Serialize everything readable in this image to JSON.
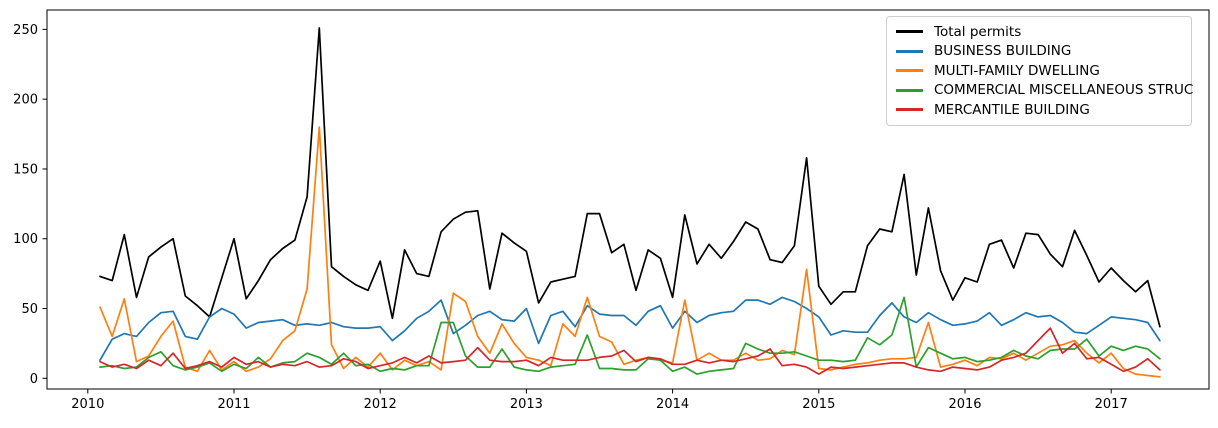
{
  "chart_data": {
    "type": "line",
    "title": "",
    "xlabel": "",
    "ylabel": "",
    "grid": false,
    "legend_position": "upper right",
    "x_tick_labels": [
      "2010",
      "2011",
      "2012",
      "2013",
      "2014",
      "2015",
      "2016",
      "2017"
    ],
    "y_ticks": [
      0,
      50,
      100,
      150,
      200,
      250
    ],
    "ylim": [
      -13,
      265
    ],
    "months": [
      "2010-02",
      "2010-03",
      "2010-04",
      "2010-05",
      "2010-06",
      "2010-07",
      "2010-08",
      "2010-09",
      "2010-10",
      "2010-11",
      "2010-12",
      "2011-01",
      "2011-02",
      "2011-03",
      "2011-04",
      "2011-05",
      "2011-06",
      "2011-07",
      "2011-08",
      "2011-09",
      "2011-10",
      "2011-11",
      "2011-12",
      "2012-01",
      "2012-02",
      "2012-03",
      "2012-04",
      "2012-05",
      "2012-06",
      "2012-07",
      "2012-08",
      "2012-09",
      "2012-10",
      "2012-11",
      "2012-12",
      "2013-01",
      "2013-02",
      "2013-03",
      "2013-04",
      "2013-05",
      "2013-06",
      "2013-07",
      "2013-08",
      "2013-09",
      "2013-10",
      "2013-11",
      "2013-12",
      "2014-01",
      "2014-02",
      "2014-03",
      "2014-04",
      "2014-05",
      "2014-06",
      "2014-07",
      "2014-08",
      "2014-09",
      "2014-10",
      "2014-11",
      "2014-12",
      "2015-01",
      "2015-02",
      "2015-03",
      "2015-04",
      "2015-05",
      "2015-06",
      "2015-07",
      "2015-08",
      "2015-09",
      "2015-10",
      "2015-11",
      "2015-12",
      "2016-01",
      "2016-02",
      "2016-03",
      "2016-04",
      "2016-05",
      "2016-06",
      "2016-07",
      "2016-08",
      "2016-09",
      "2016-10",
      "2016-11",
      "2016-12",
      "2017-01",
      "2017-02",
      "2017-03",
      "2017-04",
      "2017-05"
    ],
    "series": [
      {
        "name": "Total permits",
        "color": "#000000",
        "values": [
          73,
          70,
          103,
          58,
          87,
          94,
          100,
          59,
          52,
          44,
          72,
          100,
          57,
          70,
          85,
          93,
          99,
          130,
          251,
          80,
          73,
          67,
          63,
          84,
          43,
          92,
          75,
          73,
          105,
          114,
          119,
          120,
          64,
          104,
          97,
          91,
          54,
          69,
          71,
          73,
          118,
          118,
          90,
          96,
          63,
          92,
          86,
          58,
          117,
          82,
          96,
          86,
          98,
          112,
          107,
          85,
          83,
          95,
          158,
          66,
          53,
          62,
          62,
          95,
          107,
          105,
          146,
          74,
          122,
          77,
          56,
          72,
          69,
          96,
          99,
          79,
          104,
          103,
          89,
          80,
          106,
          88,
          69,
          79,
          70,
          62,
          70,
          37
        ]
      },
      {
        "name": "BUSINESS BUILDING",
        "color": "#1f77b4",
        "values": [
          13,
          28,
          32,
          30,
          40,
          47,
          48,
          30,
          28,
          44,
          50,
          46,
          36,
          40,
          41,
          42,
          38,
          39,
          38,
          40,
          37,
          36,
          36,
          37,
          27,
          34,
          43,
          48,
          56,
          32,
          38,
          45,
          48,
          42,
          41,
          50,
          25,
          45,
          48,
          37,
          52,
          46,
          45,
          45,
          38,
          48,
          52,
          36,
          48,
          40,
          45,
          47,
          48,
          56,
          56,
          53,
          58,
          55,
          50,
          44,
          31,
          34,
          33,
          33,
          45,
          54,
          44,
          40,
          47,
          42,
          38,
          39,
          41,
          47,
          38,
          42,
          47,
          44,
          45,
          40,
          33,
          32,
          38,
          44,
          43,
          42,
          40,
          27
        ]
      },
      {
        "name": "MULTI-FAMILY DWELLING",
        "color": "#ff7f0e",
        "values": [
          51,
          30,
          57,
          12,
          16,
          30,
          41,
          8,
          5,
          20,
          6,
          12,
          5,
          8,
          14,
          27,
          34,
          64,
          180,
          24,
          7,
          15,
          8,
          18,
          6,
          13,
          9,
          12,
          6,
          61,
          55,
          30,
          18,
          39,
          25,
          15,
          13,
          9,
          39,
          30,
          58,
          30,
          26,
          10,
          13,
          15,
          13,
          11,
          56,
          13,
          18,
          13,
          13,
          18,
          13,
          14,
          20,
          17,
          78,
          7,
          6,
          8,
          10,
          11,
          13,
          14,
          14,
          15,
          40,
          8,
          10,
          13,
          9,
          15,
          14,
          18,
          13,
          18,
          23,
          24,
          27,
          18,
          11,
          18,
          7,
          3,
          2,
          1
        ]
      },
      {
        "name": "COMMERCIAL MISCELLANEOUS STRUC",
        "color": "#2ca02c",
        "values": [
          8,
          9,
          7,
          8,
          15,
          19,
          9,
          6,
          8,
          11,
          5,
          10,
          7,
          15,
          8,
          11,
          12,
          18,
          15,
          10,
          18,
          9,
          10,
          5,
          7,
          6,
          9,
          9,
          40,
          40,
          16,
          8,
          8,
          21,
          8,
          6,
          5,
          8,
          9,
          10,
          31,
          7,
          7,
          6,
          6,
          14,
          13,
          5,
          8,
          3,
          5,
          6,
          7,
          25,
          21,
          18,
          18,
          19,
          16,
          13,
          13,
          12,
          13,
          29,
          24,
          31,
          58,
          8,
          22,
          18,
          14,
          15,
          12,
          13,
          15,
          20,
          16,
          14,
          20,
          21,
          21,
          28,
          16,
          23,
          20,
          23,
          21,
          14
        ]
      },
      {
        "name": "MERCANTILE BUILDING",
        "color": "#d62728",
        "values": [
          12,
          8,
          10,
          7,
          13,
          9,
          18,
          7,
          9,
          12,
          8,
          15,
          10,
          12,
          8,
          10,
          9,
          12,
          8,
          9,
          14,
          12,
          7,
          9,
          11,
          15,
          11,
          16,
          11,
          12,
          13,
          22,
          13,
          12,
          12,
          13,
          9,
          15,
          13,
          13,
          13,
          15,
          16,
          20,
          12,
          15,
          14,
          10,
          10,
          13,
          11,
          13,
          12,
          14,
          16,
          21,
          9,
          10,
          8,
          3,
          8,
          7,
          8,
          9,
          10,
          11,
          11,
          8,
          6,
          5,
          8,
          7,
          6,
          8,
          13,
          15,
          18,
          27,
          36,
          18,
          25,
          14,
          15,
          10,
          5,
          8,
          14,
          6
        ]
      }
    ]
  }
}
